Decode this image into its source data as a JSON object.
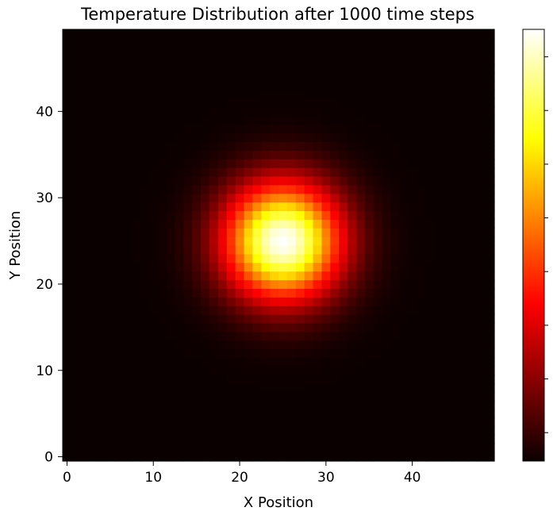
{
  "chart_data": {
    "type": "heatmap",
    "title": "Temperature Distribution after 1000 time steps",
    "xlabel": "X Position",
    "ylabel": "Y Position",
    "grid": false,
    "colormap": "hot",
    "grid_size": [
      50,
      50
    ],
    "xlim": [
      -0.5,
      49.5
    ],
    "ylim": [
      -0.5,
      49.5
    ],
    "x_ticks": [
      0,
      10,
      20,
      30,
      40
    ],
    "y_ticks": [
      0,
      10,
      20,
      30,
      40
    ],
    "x_tick_labels": [
      "0",
      "10",
      "20",
      "30",
      "40"
    ],
    "y_tick_labels": [
      "0",
      "10",
      "20",
      "30",
      "40"
    ],
    "peak_center": [
      25,
      25
    ],
    "peak_spread": 4.7,
    "colorbar": {
      "label": "",
      "tick_count": 8,
      "tick_labels_visible": false
    }
  }
}
